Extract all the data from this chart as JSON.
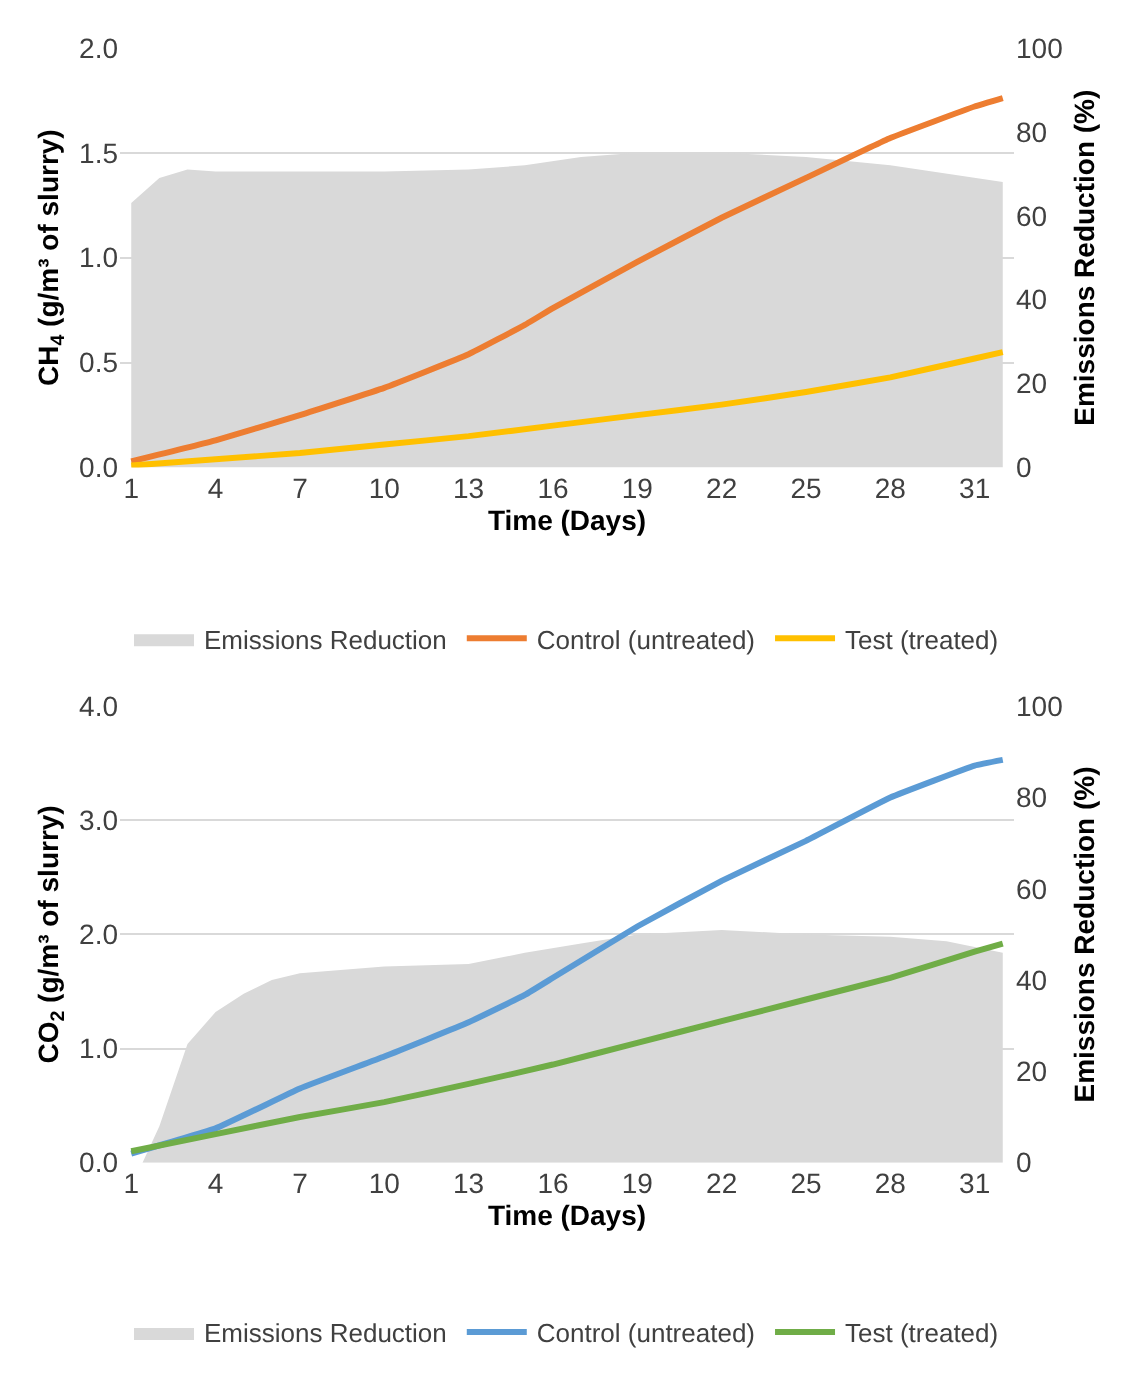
{
  "chart_data": [
    {
      "type": "line",
      "xlabel": "Time (Days)",
      "ylabel": "CH$_{4}$ (g/m³ of slurry)",
      "y2label": "Emissions Reduction (%)",
      "xlim": [
        0.6,
        32.4
      ],
      "xticks": [
        1,
        4,
        7,
        10,
        13,
        16,
        19,
        22,
        25,
        28,
        31
      ],
      "ylim": [
        0,
        2.0
      ],
      "yticks": [
        {
          "value": 0,
          "label": "0.0"
        },
        {
          "value": 0.5,
          "label": "0.5"
        },
        {
          "value": 1.0,
          "label": "1.0"
        },
        {
          "value": 1.5,
          "label": "1.5"
        },
        {
          "value": 2.0,
          "label": "2.0"
        }
      ],
      "y2lim": [
        0,
        100
      ],
      "y2ticks": [
        0,
        20,
        40,
        60,
        80,
        100
      ],
      "grid": "y",
      "legend": "bottom",
      "series": [
        {
          "name": "Emissions Reduction",
          "type": "area",
          "axis": "y2",
          "color": "#d9d9d9",
          "x": [
            1,
            2,
            3,
            4,
            7,
            10,
            13,
            15,
            17,
            19,
            22,
            25,
            28,
            32
          ],
          "values": [
            63,
            69,
            71,
            70.5,
            70.5,
            70.5,
            71,
            72,
            74,
            75,
            75,
            74,
            72,
            68
          ]
        },
        {
          "name": "Control (untreated)",
          "color": "#ed7d31",
          "x": [
            1,
            4,
            7,
            10,
            13,
            15,
            16,
            19,
            22,
            25,
            28,
            31,
            32
          ],
          "values": [
            0.03,
            0.13,
            0.25,
            0.38,
            0.54,
            0.68,
            0.76,
            0.98,
            1.19,
            1.38,
            1.57,
            1.72,
            1.76
          ]
        },
        {
          "name": "Test (treated)",
          "color": "#ffc000",
          "x": [
            1,
            4,
            7,
            10,
            13,
            16,
            19,
            22,
            25,
            28,
            31,
            32
          ],
          "values": [
            0.01,
            0.04,
            0.07,
            0.11,
            0.15,
            0.2,
            0.25,
            0.3,
            0.36,
            0.43,
            0.52,
            0.55
          ]
        }
      ]
    },
    {
      "type": "line",
      "xlabel": "Time (Days)",
      "ylabel": "CO$_{2}$ (g/m³ of slurry)",
      "y2label": "Emissions Reduction (%)",
      "xlim": [
        0.6,
        32.4
      ],
      "xticks": [
        1,
        4,
        7,
        10,
        13,
        16,
        19,
        22,
        25,
        28,
        31
      ],
      "ylim": [
        0,
        4.0
      ],
      "yticks": [
        {
          "value": 0,
          "label": "0.0"
        },
        {
          "value": 1.0,
          "label": "1.0"
        },
        {
          "value": 2.0,
          "label": "2.0"
        },
        {
          "value": 3.0,
          "label": "3.0"
        },
        {
          "value": 4.0,
          "label": "4.0"
        }
      ],
      "y2lim": [
        0,
        100
      ],
      "y2ticks": [
        0,
        20,
        40,
        60,
        80,
        100
      ],
      "grid": "y",
      "legend": "bottom",
      "series": [
        {
          "name": "Emissions Reduction",
          "type": "area",
          "axis": "y2",
          "color": "#d9d9d9",
          "x": [
            1.4,
            2,
            3,
            4,
            5,
            6,
            7,
            10,
            13,
            15,
            17,
            19,
            22,
            25,
            28,
            30,
            32
          ],
          "values": [
            0,
            8,
            26,
            33,
            37,
            40,
            41.5,
            43,
            43.5,
            46,
            48,
            50,
            51,
            50,
            49.5,
            48.5,
            46
          ]
        },
        {
          "name": "Control (untreated)",
          "color": "#5b9bd5",
          "x": [
            1,
            4,
            7,
            10,
            13,
            15,
            16,
            19,
            22,
            25,
            28,
            31,
            32
          ],
          "values": [
            0.08,
            0.3,
            0.65,
            0.93,
            1.23,
            1.47,
            1.62,
            2.07,
            2.47,
            2.82,
            3.2,
            3.48,
            3.53
          ]
        },
        {
          "name": "Test (treated)",
          "color": "#70ad47",
          "x": [
            1,
            4,
            7,
            10,
            13,
            16,
            19,
            22,
            25,
            28,
            31,
            32
          ],
          "values": [
            0.1,
            0.25,
            0.4,
            0.53,
            0.69,
            0.86,
            1.05,
            1.24,
            1.43,
            1.62,
            1.85,
            1.92
          ]
        }
      ]
    }
  ]
}
